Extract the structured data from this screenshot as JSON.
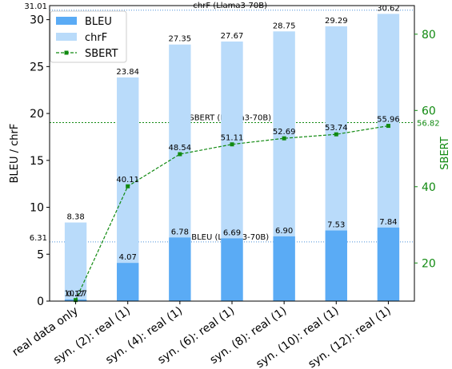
{
  "chart_data": {
    "type": "bar",
    "categories": [
      "real data only",
      "syn. (2): real (1)",
      "syn. (4): real (1)",
      "syn. (6): real (1)",
      "syn. (8): real (1)",
      "syn. (10): real (1)",
      "syn. (12): real (1)"
    ],
    "ylabel": "BLEU / chrF",
    "y2label": "SBERT",
    "ylim": [
      0,
      31.5
    ],
    "y2lim": [
      10.0,
      87.5
    ],
    "yticks": [
      "0",
      "5",
      "10",
      "15",
      "20",
      "25",
      "30"
    ],
    "y2ticks": [
      "20",
      "40",
      "60",
      "80"
    ],
    "grid": false,
    "legend": "top-left",
    "series": [
      {
        "name": "BLEU",
        "axis": "left",
        "kind": "bar",
        "color": "#5aabf5",
        "values": [
          0.17,
          4.07,
          6.78,
          6.69,
          6.9,
          7.53,
          7.84
        ],
        "labels": [
          "0.17",
          "4.07",
          "6.78",
          "6.69",
          "6.90",
          "7.53",
          "7.84"
        ]
      },
      {
        "name": "chrF",
        "axis": "left",
        "kind": "bar",
        "color": "#b9dbfa",
        "values": [
          8.38,
          23.84,
          27.35,
          27.67,
          28.75,
          29.29,
          30.62
        ],
        "labels": [
          "8.38",
          "23.84",
          "27.35",
          "27.67",
          "28.75",
          "29.29",
          "30.62"
        ]
      },
      {
        "name": "SBERT",
        "axis": "right",
        "kind": "line",
        "color": "#118a11",
        "values": [
          10.27,
          40.11,
          48.54,
          51.11,
          52.69,
          53.74,
          55.96
        ],
        "labels": [
          "10.27",
          "40.11",
          "48.54",
          "51.11",
          "52.69",
          "53.74",
          "55.96"
        ]
      }
    ],
    "reference_lines": [
      {
        "label": "chrF (Llama3-70B)",
        "value": 31.01,
        "value_label": "31.01",
        "axis": "left",
        "color": "#4a90d9"
      },
      {
        "label": "SBERT (Llama3-70B)",
        "value": 56.82,
        "value_label": "56.82",
        "axis": "right",
        "color": "#118a11"
      },
      {
        "label": "BLEU (Llama3-70B)",
        "value": 6.31,
        "value_label": "6.31",
        "axis": "left",
        "color": "#4a90d9"
      }
    ]
  }
}
